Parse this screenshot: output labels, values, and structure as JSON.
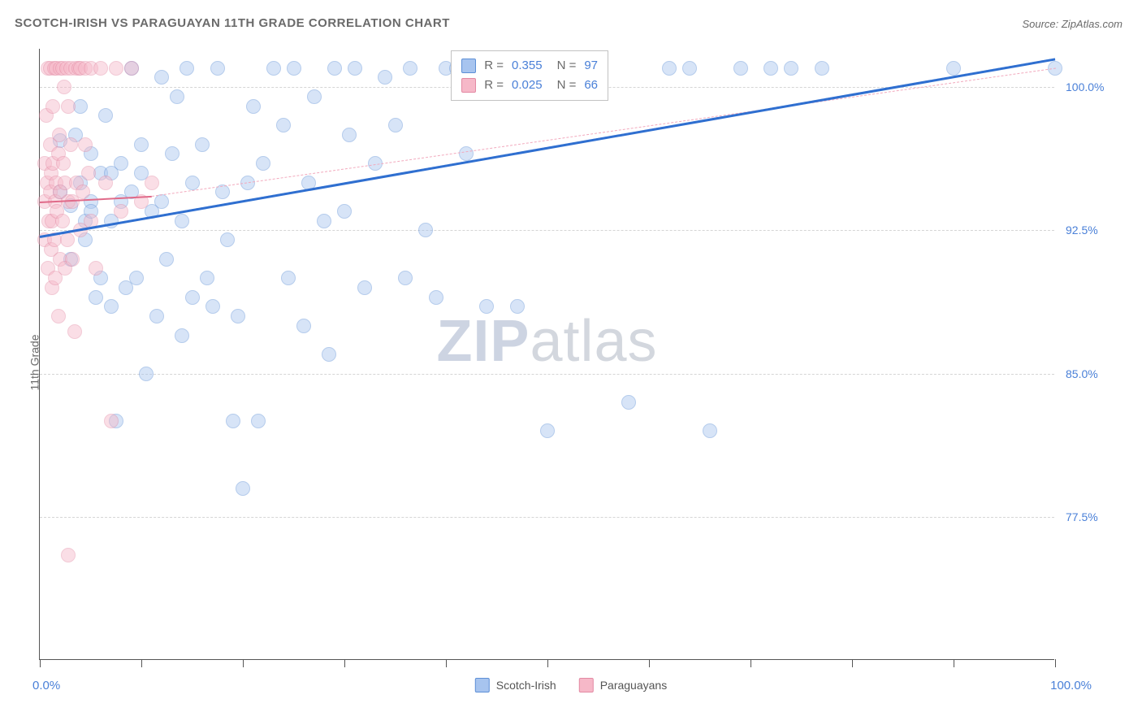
{
  "title": "SCOTCH-IRISH VS PARAGUAYAN 11TH GRADE CORRELATION CHART",
  "source": "Source: ZipAtlas.com",
  "ylabel": "11th Grade",
  "watermark": {
    "zip": "ZIP",
    "atlas": "atlas"
  },
  "chart": {
    "type": "scatter",
    "xlim": [
      0,
      100
    ],
    "ylim": [
      70,
      102
    ],
    "x_ticks": [
      0,
      10,
      20,
      30,
      40,
      50,
      60,
      70,
      80,
      90,
      100
    ],
    "y_gridlines": [
      77.5,
      85.0,
      92.5,
      100.0
    ],
    "y_tick_labels": [
      "77.5%",
      "85.0%",
      "92.5%",
      "100.0%"
    ],
    "x_min_label": "0.0%",
    "x_max_label": "100.0%",
    "background_color": "#ffffff",
    "grid_color": "#d5d5d5",
    "axis_color": "#555555",
    "tick_label_color": "#4a80d8",
    "point_radius": 9,
    "point_opacity": 0.45,
    "series": [
      {
        "name": "Scotch-Irish",
        "color_fill": "#a7c4ef",
        "color_stroke": "#5d8fd6",
        "R": "0.355",
        "N": "97",
        "trend": {
          "x1": 0,
          "y1": 92.2,
          "x2": 100,
          "y2": 101.5,
          "color": "#2f6fd0",
          "width": 3,
          "dashed": false
        },
        "proj": {
          "x1": 0,
          "y1": 92.2,
          "x2": 100,
          "y2": 101.5,
          "color": "#a7c4ef",
          "width": 1,
          "dashed": true
        },
        "points": [
          [
            2,
            94.5
          ],
          [
            2,
            97.2
          ],
          [
            3,
            91.0
          ],
          [
            3,
            93.8
          ],
          [
            3.5,
            97.5
          ],
          [
            4,
            95.0
          ],
          [
            4,
            99.0
          ],
          [
            4.5,
            92.0
          ],
          [
            4.5,
            93.0
          ],
          [
            5,
            94.0
          ],
          [
            5,
            96.5
          ],
          [
            5,
            93.5
          ],
          [
            5.5,
            89.0
          ],
          [
            6,
            90.0
          ],
          [
            6,
            95.5
          ],
          [
            6.5,
            98.5
          ],
          [
            7,
            93.0
          ],
          [
            7,
            95.5
          ],
          [
            7,
            88.5
          ],
          [
            7.5,
            82.5
          ],
          [
            8,
            96.0
          ],
          [
            8,
            94.0
          ],
          [
            8.5,
            89.5
          ],
          [
            9,
            94.5
          ],
          [
            9,
            101.0
          ],
          [
            9.5,
            90.0
          ],
          [
            10,
            95.5
          ],
          [
            10,
            97.0
          ],
          [
            10.5,
            85.0
          ],
          [
            11,
            93.5
          ],
          [
            11.5,
            88.0
          ],
          [
            12,
            94.0
          ],
          [
            12,
            100.5
          ],
          [
            12.5,
            91.0
          ],
          [
            13,
            96.5
          ],
          [
            13.5,
            99.5
          ],
          [
            14,
            87.0
          ],
          [
            14,
            93.0
          ],
          [
            14.5,
            101.0
          ],
          [
            15,
            95.0
          ],
          [
            15,
            89.0
          ],
          [
            16,
            97.0
          ],
          [
            16.5,
            90.0
          ],
          [
            17,
            88.5
          ],
          [
            17.5,
            101.0
          ],
          [
            18,
            94.5
          ],
          [
            18.5,
            92.0
          ],
          [
            19,
            82.5
          ],
          [
            19.5,
            88.0
          ],
          [
            20,
            79.0
          ],
          [
            20.5,
            95.0
          ],
          [
            21,
            99.0
          ],
          [
            21.5,
            82.5
          ],
          [
            22,
            96.0
          ],
          [
            23,
            101.0
          ],
          [
            24,
            98.0
          ],
          [
            24.5,
            90.0
          ],
          [
            25,
            101.0
          ],
          [
            26,
            87.5
          ],
          [
            26.5,
            95.0
          ],
          [
            27,
            99.5
          ],
          [
            28,
            93.0
          ],
          [
            28.5,
            86.0
          ],
          [
            29,
            101.0
          ],
          [
            30,
            93.5
          ],
          [
            30.5,
            97.5
          ],
          [
            31,
            101.0
          ],
          [
            32,
            89.5
          ],
          [
            33,
            96.0
          ],
          [
            34,
            100.5
          ],
          [
            35,
            98.0
          ],
          [
            36,
            90.0
          ],
          [
            36.5,
            101.0
          ],
          [
            38,
            92.5
          ],
          [
            39,
            89.0
          ],
          [
            40,
            101.0
          ],
          [
            41,
            101.0
          ],
          [
            42,
            96.5
          ],
          [
            43,
            101.0
          ],
          [
            44,
            88.5
          ],
          [
            45,
            101.0
          ],
          [
            47,
            88.5
          ],
          [
            48,
            101.0
          ],
          [
            50,
            82.0
          ],
          [
            52,
            101.0
          ],
          [
            54,
            101.0
          ],
          [
            58,
            83.5
          ],
          [
            62,
            101.0
          ],
          [
            64,
            101.0
          ],
          [
            66,
            82.0
          ],
          [
            69,
            101.0
          ],
          [
            72,
            101.0
          ],
          [
            74,
            101.0
          ],
          [
            77,
            101.0
          ],
          [
            90,
            101.0
          ],
          [
            100,
            101.0
          ],
          [
            55,
            101.0
          ]
        ]
      },
      {
        "name": "Paraguayans",
        "color_fill": "#f6b8c8",
        "color_stroke": "#e389a3",
        "R": "0.025",
        "N": "66",
        "trend": {
          "x1": 0,
          "y1": 94.0,
          "x2": 11,
          "y2": 94.3,
          "color": "#e06a89",
          "width": 2.5,
          "dashed": false
        },
        "proj": {
          "x1": 11,
          "y1": 94.3,
          "x2": 100,
          "y2": 101.0,
          "color": "#f2a9bd",
          "width": 1,
          "dashed": true
        },
        "points": [
          [
            0.5,
            94.0
          ],
          [
            0.5,
            96.0
          ],
          [
            0.5,
            92.0
          ],
          [
            0.6,
            98.5
          ],
          [
            0.7,
            95.0
          ],
          [
            0.8,
            90.5
          ],
          [
            0.8,
            101.0
          ],
          [
            0.9,
            93.0
          ],
          [
            1.0,
            94.5
          ],
          [
            1.0,
            97.0
          ],
          [
            1.0,
            101.0
          ],
          [
            1.1,
            91.5
          ],
          [
            1.1,
            95.5
          ],
          [
            1.2,
            89.5
          ],
          [
            1.2,
            93.0
          ],
          [
            1.3,
            96.0
          ],
          [
            1.3,
            99.0
          ],
          [
            1.4,
            101.0
          ],
          [
            1.4,
            92.0
          ],
          [
            1.5,
            94.0
          ],
          [
            1.5,
            90.0
          ],
          [
            1.6,
            95.0
          ],
          [
            1.6,
            101.0
          ],
          [
            1.7,
            93.5
          ],
          [
            1.8,
            88.0
          ],
          [
            1.8,
            96.5
          ],
          [
            1.9,
            97.5
          ],
          [
            2.0,
            101.0
          ],
          [
            2.0,
            91.0
          ],
          [
            2.0,
            94.5
          ],
          [
            2.2,
            101.0
          ],
          [
            2.2,
            93.0
          ],
          [
            2.3,
            96.0
          ],
          [
            2.4,
            100.0
          ],
          [
            2.5,
            90.5
          ],
          [
            2.5,
            95.0
          ],
          [
            2.6,
            101.0
          ],
          [
            2.7,
            92.0
          ],
          [
            2.8,
            99.0
          ],
          [
            2.8,
            94.0
          ],
          [
            3.0,
            97.0
          ],
          [
            3.0,
            101.0
          ],
          [
            3.2,
            91.0
          ],
          [
            3.2,
            94.0
          ],
          [
            3.4,
            87.2
          ],
          [
            3.5,
            101.0
          ],
          [
            3.6,
            95.0
          ],
          [
            3.8,
            101.0
          ],
          [
            4.0,
            92.5
          ],
          [
            4.0,
            101.0
          ],
          [
            4.2,
            94.5
          ],
          [
            4.5,
            97.0
          ],
          [
            4.5,
            101.0
          ],
          [
            4.8,
            95.5
          ],
          [
            5.0,
            101.0
          ],
          [
            5.0,
            93.0
          ],
          [
            5.5,
            90.5
          ],
          [
            6.0,
            101.0
          ],
          [
            6.5,
            95.0
          ],
          [
            7.0,
            82.5
          ],
          [
            7.5,
            101.0
          ],
          [
            8.0,
            93.5
          ],
          [
            9.0,
            101.0
          ],
          [
            2.8,
            75.5
          ],
          [
            10,
            94.0
          ],
          [
            11,
            95.0
          ]
        ]
      }
    ],
    "stats_box": {
      "left_pct": 40.5,
      "top_pct_plot": 0
    }
  },
  "legend_bottom": [
    {
      "label": "Scotch-Irish",
      "fill": "#a7c4ef",
      "stroke": "#5d8fd6"
    },
    {
      "label": "Paraguayans",
      "fill": "#f6b8c8",
      "stroke": "#e389a3"
    }
  ]
}
